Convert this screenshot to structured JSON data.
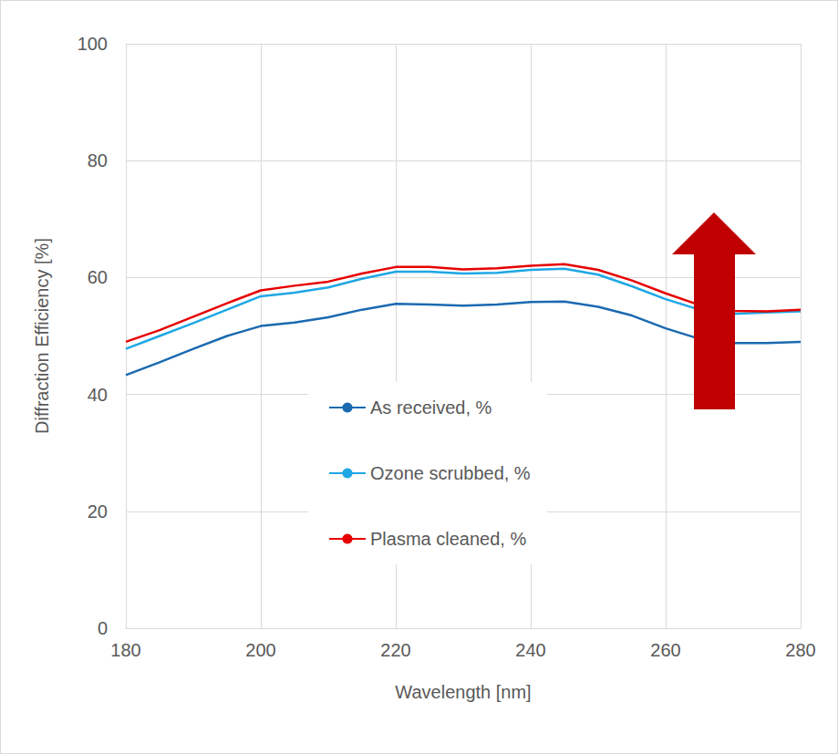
{
  "chart_data": {
    "type": "line",
    "x_label": "Wavelength [nm]",
    "y_label": "Diffraction Efficiency [%]",
    "x": [
      180,
      185,
      190,
      195,
      200,
      205,
      210,
      215,
      220,
      225,
      230,
      235,
      240,
      245,
      250,
      255,
      260,
      265,
      270,
      275,
      280
    ],
    "series": [
      {
        "name": "As received, %",
        "color": "#1b6ab0",
        "values": [
          43.3,
          45.5,
          47.8,
          50.0,
          51.7,
          52.3,
          53.2,
          54.5,
          55.5,
          55.4,
          55.2,
          55.4,
          55.8,
          55.9,
          55.0,
          53.5,
          51.3,
          49.5,
          48.8,
          48.8,
          49.0
        ]
      },
      {
        "name": "Ozone scrubbed, %",
        "color": "#1ea7e4",
        "values": [
          47.8,
          50.0,
          52.2,
          54.5,
          56.8,
          57.4,
          58.3,
          59.8,
          61.0,
          61.0,
          60.7,
          60.8,
          61.3,
          61.5,
          60.5,
          58.5,
          56.3,
          54.5,
          53.8,
          54.0,
          54.2
        ]
      },
      {
        "name": "Plasma cleaned, %",
        "color": "#e60000",
        "values": [
          49.0,
          51.0,
          53.3,
          55.6,
          57.8,
          58.6,
          59.3,
          60.7,
          61.8,
          61.8,
          61.4,
          61.6,
          62.0,
          62.3,
          61.3,
          59.5,
          57.3,
          55.3,
          54.3,
          54.2,
          54.5
        ]
      }
    ],
    "xlim": [
      180,
      280
    ],
    "xticks": [
      180,
      200,
      220,
      240,
      260,
      280
    ],
    "ylim": [
      0,
      100
    ],
    "yticks": [
      0,
      20,
      40,
      60,
      80,
      100
    ],
    "grid": true,
    "legend": "lower center"
  }
}
